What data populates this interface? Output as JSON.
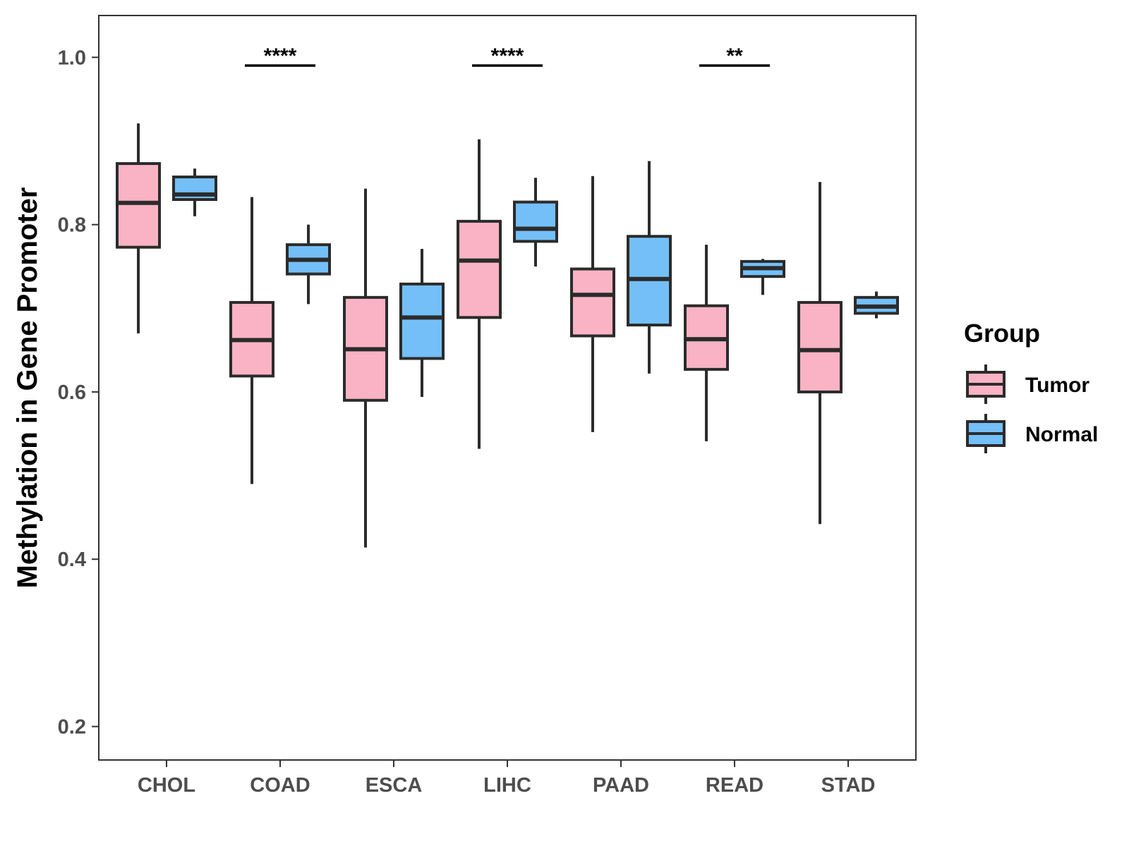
{
  "chart_data": {
    "type": "boxplot",
    "title": "",
    "xlabel": "",
    "ylabel": "Methylation in Gene Promoter",
    "ylim": [
      0.16,
      1.05
    ],
    "yticks": [
      0.2,
      0.4,
      0.6,
      0.8,
      1.0
    ],
    "ytick_labels": [
      "0.2",
      "0.4",
      "0.6",
      "0.8",
      "1.0"
    ],
    "grid": false,
    "categories": [
      "CHOL",
      "COAD",
      "ESCA",
      "LIHC",
      "PAAD",
      "READ",
      "STAD"
    ],
    "series": [
      {
        "name": "Tumor",
        "color": "#F9B3C4",
        "boxes": [
          {
            "min": 0.67,
            "q1": 0.773,
            "median": 0.826,
            "q3": 0.873,
            "max": 0.921
          },
          {
            "min": 0.49,
            "q1": 0.619,
            "median": 0.662,
            "q3": 0.707,
            "max": 0.833
          },
          {
            "min": 0.414,
            "q1": 0.59,
            "median": 0.651,
            "q3": 0.713,
            "max": 0.843
          },
          {
            "min": 0.532,
            "q1": 0.689,
            "median": 0.757,
            "q3": 0.804,
            "max": 0.902
          },
          {
            "min": 0.552,
            "q1": 0.667,
            "median": 0.716,
            "q3": 0.747,
            "max": 0.858
          },
          {
            "min": 0.541,
            "q1": 0.627,
            "median": 0.663,
            "q3": 0.703,
            "max": 0.776
          },
          {
            "min": 0.442,
            "q1": 0.6,
            "median": 0.65,
            "q3": 0.707,
            "max": 0.851
          }
        ]
      },
      {
        "name": "Normal",
        "color": "#74BFF8",
        "boxes": [
          {
            "min": 0.81,
            "q1": 0.83,
            "median": 0.836,
            "q3": 0.857,
            "max": 0.867
          },
          {
            "min": 0.705,
            "q1": 0.741,
            "median": 0.758,
            "q3": 0.776,
            "max": 0.8
          },
          {
            "min": 0.594,
            "q1": 0.64,
            "median": 0.689,
            "q3": 0.729,
            "max": 0.771
          },
          {
            "min": 0.75,
            "q1": 0.78,
            "median": 0.795,
            "q3": 0.827,
            "max": 0.856
          },
          {
            "min": 0.622,
            "q1": 0.68,
            "median": 0.735,
            "q3": 0.786,
            "max": 0.876
          },
          {
            "min": 0.716,
            "q1": 0.738,
            "median": 0.748,
            "q3": 0.756,
            "max": 0.759
          },
          {
            "min": 0.688,
            "q1": 0.694,
            "median": 0.702,
            "q3": 0.713,
            "max": 0.72
          }
        ]
      }
    ],
    "significance": [
      {
        "category": "COAD",
        "label": "****"
      },
      {
        "category": "LIHC",
        "label": "****"
      },
      {
        "category": "READ",
        "label": "**"
      }
    ],
    "legend": {
      "title": "Group",
      "position": "right",
      "entries": [
        "Tumor",
        "Normal"
      ]
    }
  }
}
